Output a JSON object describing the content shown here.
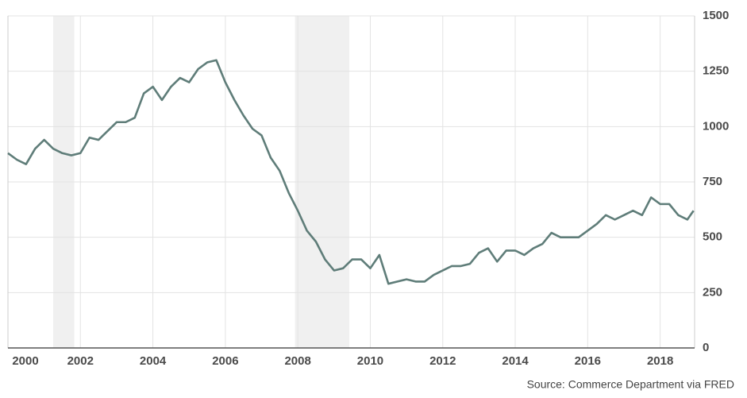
{
  "chart_data": {
    "type": "line",
    "source": "Source: Commerce Department via FRED",
    "x": [
      2000,
      2000.25,
      2000.5,
      2000.75,
      2001,
      2001.25,
      2001.5,
      2001.75,
      2002,
      2002.25,
      2002.5,
      2002.75,
      2003,
      2003.25,
      2003.5,
      2003.75,
      2004,
      2004.25,
      2004.5,
      2004.75,
      2005,
      2005.25,
      2005.5,
      2005.75,
      2006,
      2006.25,
      2006.5,
      2006.75,
      2007,
      2007.25,
      2007.5,
      2007.75,
      2008,
      2008.25,
      2008.5,
      2008.75,
      2009,
      2009.25,
      2009.5,
      2009.75,
      2010,
      2010.25,
      2010.5,
      2010.75,
      2011,
      2011.25,
      2011.5,
      2011.75,
      2012,
      2012.25,
      2012.5,
      2012.75,
      2013,
      2013.25,
      2013.5,
      2013.75,
      2014,
      2014.25,
      2014.5,
      2014.75,
      2015,
      2015.25,
      2015.5,
      2015.75,
      2016,
      2016.25,
      2016.5,
      2016.75,
      2017,
      2017.25,
      2017.5,
      2017.75,
      2018,
      2018.25,
      2018.5,
      2018.75,
      2018.92
    ],
    "series": [
      {
        "color": "#5f7d79",
        "values": [
          880,
          850,
          830,
          900,
          940,
          900,
          880,
          870,
          880,
          950,
          940,
          980,
          1020,
          1020,
          1040,
          1150,
          1180,
          1120,
          1180,
          1220,
          1200,
          1260,
          1290,
          1300,
          1200,
          1120,
          1050,
          990,
          960,
          860,
          800,
          700,
          620,
          530,
          480,
          400,
          350,
          360,
          400,
          400,
          360,
          420,
          290,
          300,
          310,
          300,
          300,
          330,
          350,
          370,
          370,
          380,
          430,
          450,
          390,
          440,
          440,
          420,
          450,
          470,
          520,
          500,
          500,
          500,
          530,
          560,
          600,
          580,
          600,
          620,
          600,
          680,
          650,
          650,
          600,
          580,
          620
        ]
      }
    ],
    "recessions": [
      [
        2001.25,
        2001.83
      ],
      [
        2007.92,
        2009.42
      ]
    ],
    "xlim": [
      2000,
      2018.95
    ],
    "ylim": [
      0,
      1500
    ],
    "xticks": [
      2000,
      2002,
      2004,
      2006,
      2008,
      2010,
      2012,
      2014,
      2016,
      2018
    ],
    "yticks": [
      0,
      250,
      500,
      750,
      1000,
      1250,
      1500
    ],
    "grid": true
  }
}
